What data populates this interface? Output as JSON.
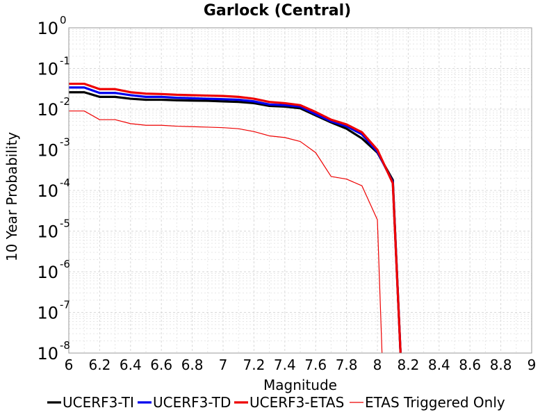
{
  "chart_data": {
    "type": "line",
    "title": "Garlock (Central)",
    "xlabel": "Magnitude",
    "ylabel": "10 Year Probability",
    "xlim": [
      6,
      9
    ],
    "ylim_exponents": [
      -8,
      0
    ],
    "yscale": "log",
    "x_ticks": [
      "6",
      "6.2",
      "6.4",
      "6.6",
      "6.8",
      "7",
      "7.2",
      "7.4",
      "7.6",
      "7.8",
      "8",
      "8.2",
      "8.4",
      "8.6",
      "8.8",
      "9"
    ],
    "y_tick_base": "10",
    "y_tick_exponents": [
      "0",
      "-1",
      "-2",
      "-3",
      "-4",
      "-5",
      "-6",
      "-7",
      "-8"
    ],
    "grid": true,
    "legend_position": "bottom",
    "series": [
      {
        "name": "UCERF3-TI",
        "color": "#000000",
        "weight": "thick",
        "x": [
          6.0,
          6.1,
          6.2,
          6.3,
          6.4,
          6.5,
          6.6,
          6.7,
          6.8,
          6.9,
          7.0,
          7.1,
          7.2,
          7.3,
          7.4,
          7.5,
          7.6,
          7.7,
          7.8,
          7.9,
          8.0,
          8.1,
          8.15
        ],
        "y": [
          0.026,
          0.026,
          0.02,
          0.02,
          0.018,
          0.017,
          0.017,
          0.0165,
          0.0162,
          0.016,
          0.0155,
          0.015,
          0.014,
          0.012,
          0.0115,
          0.0105,
          0.007,
          0.0047,
          0.0033,
          0.0019,
          0.00085,
          0.00018,
          1e-08
        ]
      },
      {
        "name": "UCERF3-TD",
        "color": "#0000ee",
        "weight": "thick",
        "x": [
          6.0,
          6.1,
          6.2,
          6.3,
          6.4,
          6.5,
          6.6,
          6.7,
          6.8,
          6.9,
          7.0,
          7.1,
          7.2,
          7.3,
          7.4,
          7.5,
          7.6,
          7.7,
          7.8,
          7.9,
          8.0,
          8.1,
          8.15
        ],
        "y": [
          0.034,
          0.034,
          0.025,
          0.025,
          0.022,
          0.02,
          0.02,
          0.019,
          0.0185,
          0.018,
          0.0175,
          0.017,
          0.0155,
          0.013,
          0.0125,
          0.0115,
          0.0075,
          0.005,
          0.0038,
          0.0024,
          0.0009,
          0.00016,
          1e-08
        ]
      },
      {
        "name": "UCERF3-ETAS",
        "color": "#ee0000",
        "weight": "thick",
        "x": [
          6.0,
          6.1,
          6.2,
          6.3,
          6.4,
          6.5,
          6.6,
          6.7,
          6.8,
          6.9,
          7.0,
          7.1,
          7.2,
          7.3,
          7.4,
          7.5,
          7.6,
          7.7,
          7.8,
          7.9,
          8.0,
          8.1,
          8.15
        ],
        "y": [
          0.042,
          0.042,
          0.031,
          0.031,
          0.026,
          0.024,
          0.0235,
          0.0225,
          0.022,
          0.0215,
          0.021,
          0.02,
          0.018,
          0.015,
          0.014,
          0.0125,
          0.0085,
          0.0055,
          0.0042,
          0.0027,
          0.001,
          0.00015,
          1e-08
        ]
      },
      {
        "name": "ETAS Triggered Only",
        "color": "#ee0000",
        "weight": "thin",
        "x": [
          6.0,
          6.1,
          6.2,
          6.3,
          6.4,
          6.5,
          6.6,
          6.7,
          6.8,
          6.9,
          7.0,
          7.1,
          7.2,
          7.3,
          7.4,
          7.5,
          7.6,
          7.7,
          7.8,
          7.9,
          8.0,
          8.03
        ],
        "y": [
          0.009,
          0.009,
          0.0055,
          0.0055,
          0.0044,
          0.004,
          0.004,
          0.0038,
          0.0037,
          0.0036,
          0.0035,
          0.0033,
          0.0028,
          0.0022,
          0.002,
          0.0016,
          0.00085,
          0.00022,
          0.00019,
          0.00013,
          1.9e-05,
          1e-08
        ]
      }
    ]
  }
}
